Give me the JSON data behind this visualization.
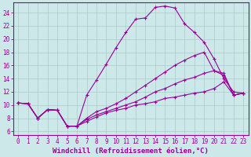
{
  "xlabel": "Windchill (Refroidissement éolien,°C)",
  "background_color": "#cce8e8",
  "grid_color": "#aacccc",
  "line_color": "#990099",
  "x_ticks": [
    0,
    1,
    2,
    3,
    4,
    5,
    6,
    7,
    8,
    9,
    10,
    11,
    12,
    13,
    14,
    15,
    16,
    17,
    18,
    19,
    20,
    21,
    22,
    23
  ],
  "y_ticks": [
    6,
    8,
    10,
    12,
    14,
    16,
    18,
    20,
    22,
    24
  ],
  "xlim": [
    -0.5,
    23.5
  ],
  "ylim": [
    5.5,
    25.5
  ],
  "curves": [
    {
      "x": [
        0,
        1,
        2,
        3,
        4,
        5,
        6,
        7,
        8,
        9,
        10,
        11,
        12,
        13,
        14,
        15,
        16,
        17,
        18,
        19,
        20,
        21,
        22,
        23
      ],
      "y": [
        10.3,
        10.2,
        8.0,
        9.3,
        9.2,
        6.8,
        6.8,
        11.5,
        13.8,
        16.2,
        18.7,
        21.0,
        23.0,
        23.2,
        24.8,
        25.0,
        24.7,
        22.3,
        21.0,
        19.5,
        17.0,
        14.0,
        12.0,
        11.8
      ]
    },
    {
      "x": [
        0,
        1,
        2,
        3,
        4,
        5,
        6,
        7,
        8,
        9,
        10,
        11,
        12,
        13,
        14,
        15,
        16,
        17,
        18,
        19,
        20,
        21,
        22,
        23
      ],
      "y": [
        10.3,
        10.2,
        8.0,
        9.3,
        9.2,
        6.8,
        6.8,
        8.0,
        9.0,
        9.5,
        10.2,
        11.0,
        12.0,
        13.0,
        14.0,
        15.0,
        16.0,
        16.8,
        17.5,
        18.0,
        15.2,
        14.8,
        11.5,
        11.8
      ]
    },
    {
      "x": [
        0,
        1,
        2,
        3,
        4,
        5,
        6,
        7,
        8,
        9,
        10,
        11,
        12,
        13,
        14,
        15,
        16,
        17,
        18,
        19,
        20,
        21,
        22,
        23
      ],
      "y": [
        10.3,
        10.2,
        8.0,
        9.3,
        9.2,
        6.8,
        6.8,
        7.8,
        8.5,
        9.0,
        9.5,
        10.0,
        10.5,
        11.2,
        12.0,
        12.5,
        13.2,
        13.8,
        14.2,
        14.8,
        15.2,
        14.5,
        11.5,
        11.8
      ]
    },
    {
      "x": [
        0,
        1,
        2,
        3,
        4,
        5,
        6,
        7,
        8,
        9,
        10,
        11,
        12,
        13,
        14,
        15,
        16,
        17,
        18,
        19,
        20,
        21,
        22,
        23
      ],
      "y": [
        10.3,
        10.2,
        8.0,
        9.3,
        9.2,
        6.8,
        6.8,
        7.5,
        8.2,
        8.8,
        9.2,
        9.5,
        10.0,
        10.2,
        10.5,
        11.0,
        11.2,
        11.5,
        11.8,
        12.0,
        12.5,
        13.5,
        11.5,
        11.8
      ]
    }
  ],
  "tick_fontsize": 5.5,
  "xlabel_fontsize": 6.5
}
